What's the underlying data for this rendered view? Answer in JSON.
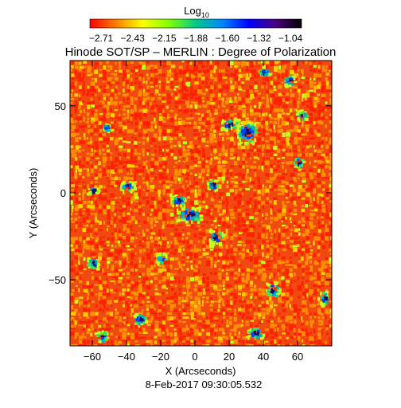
{
  "colorbar": {
    "label": "Log",
    "label_sub": "10",
    "tick_labels": [
      "−2.71",
      "−2.43",
      "−2.15",
      "−1.88",
      "−1.60",
      "−1.32",
      "−1.04"
    ],
    "range": [
      -2.71,
      -1.04
    ],
    "colormap": [
      "#ff0000",
      "#ff7f00",
      "#ffff00",
      "#7fff00",
      "#00cc88",
      "#0088ff",
      "#0000ff",
      "#4b0082",
      "#000000"
    ]
  },
  "title": "Hinode SOT/SP – MERLIN : Degree of Polarization",
  "axes": {
    "xlabel": "X (Arcseconds)",
    "ylabel": "Y (Arcseconds)",
    "xlim": [
      -73,
      80
    ],
    "ylim": [
      -88,
      76
    ],
    "x_ticks": [
      -60,
      -40,
      -20,
      0,
      20,
      40,
      60
    ],
    "y_ticks": [
      -50,
      0,
      50
    ],
    "x_tick_labels": [
      "−60",
      "−40",
      "−20",
      "0",
      "20",
      "40",
      "60"
    ],
    "y_tick_labels": [
      "−50",
      "0",
      "50"
    ]
  },
  "timestamp": "8-Feb-2017 09:30:05.532",
  "image": {
    "background_color": "#f04a10",
    "feature_colors": [
      "#ff2000",
      "#ff9000",
      "#ffd000",
      "#c0ff20",
      "#40e060",
      "#00b0c0",
      "#0040ff",
      "#101060"
    ]
  }
}
